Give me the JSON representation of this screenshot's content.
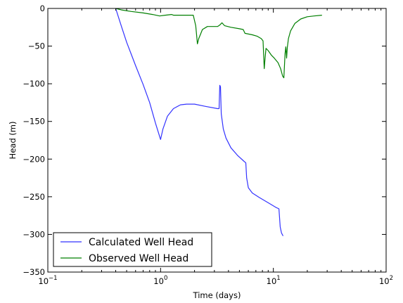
{
  "chart_data": {
    "type": "line",
    "title": "",
    "xlabel": "Time (days)",
    "ylabel": "Head (m)",
    "xscale": "log",
    "xlim": [
      0.1,
      100
    ],
    "ylim": [
      -350,
      0
    ],
    "x_ticks": [
      {
        "value": 0.1,
        "base": "10",
        "exp": "−1"
      },
      {
        "value": 1,
        "base": "10",
        "exp": "0"
      },
      {
        "value": 10,
        "base": "10",
        "exp": "1"
      },
      {
        "value": 100,
        "base": "10",
        "exp": "2"
      }
    ],
    "y_ticks": [
      {
        "value": 0,
        "label": "0"
      },
      {
        "value": -50,
        "label": "−50"
      },
      {
        "value": -100,
        "label": "−100"
      },
      {
        "value": -150,
        "label": "−150"
      },
      {
        "value": -200,
        "label": "−200"
      },
      {
        "value": -250,
        "label": "−250"
      },
      {
        "value": -300,
        "label": "−300"
      },
      {
        "value": -350,
        "label": "−350"
      }
    ],
    "grid": false,
    "legend_position": "lower-left",
    "series": [
      {
        "name": "Calculated Well Head",
        "color": "#3333ff",
        "points": [
          [
            0.4,
            0
          ],
          [
            0.42,
            -10
          ],
          [
            0.45,
            -24
          ],
          [
            0.5,
            -45
          ],
          [
            0.55,
            -61
          ],
          [
            0.6,
            -76
          ],
          [
            0.7,
            -101
          ],
          [
            0.8,
            -125
          ],
          [
            0.9,
            -152
          ],
          [
            1.0,
            -174
          ],
          [
            1.05,
            -160
          ],
          [
            1.15,
            -143
          ],
          [
            1.3,
            -133
          ],
          [
            1.5,
            -128
          ],
          [
            1.7,
            -127
          ],
          [
            2.0,
            -127
          ],
          [
            2.5,
            -130
          ],
          [
            3.2,
            -133
          ],
          [
            3.3,
            -133
          ],
          [
            3.35,
            -102
          ],
          [
            3.4,
            -104
          ],
          [
            3.45,
            -140
          ],
          [
            3.6,
            -160
          ],
          [
            3.8,
            -172
          ],
          [
            4.2,
            -185
          ],
          [
            4.8,
            -195
          ],
          [
            5.5,
            -203
          ],
          [
            5.7,
            -205
          ],
          [
            5.8,
            -225
          ],
          [
            6.0,
            -238
          ],
          [
            6.5,
            -245
          ],
          [
            7.5,
            -251
          ],
          [
            9.0,
            -258
          ],
          [
            10.5,
            -264
          ],
          [
            11.2,
            -266
          ],
          [
            11.5,
            -290
          ],
          [
            11.8,
            -298
          ],
          [
            12.2,
            -302
          ]
        ]
      },
      {
        "name": "Observed Well Head",
        "color": "#007f00",
        "points": [
          [
            0.4,
            0
          ],
          [
            0.45,
            -2
          ],
          [
            0.55,
            -4
          ],
          [
            0.7,
            -6
          ],
          [
            0.85,
            -8
          ],
          [
            0.98,
            -10
          ],
          [
            1.1,
            -9
          ],
          [
            1.25,
            -8
          ],
          [
            1.3,
            -9
          ],
          [
            1.5,
            -9
          ],
          [
            1.8,
            -9
          ],
          [
            1.95,
            -9
          ],
          [
            2.05,
            -23
          ],
          [
            2.12,
            -47
          ],
          [
            2.18,
            -40
          ],
          [
            2.35,
            -28
          ],
          [
            2.6,
            -24
          ],
          [
            2.9,
            -24
          ],
          [
            3.2,
            -24
          ],
          [
            3.35,
            -22
          ],
          [
            3.5,
            -19
          ],
          [
            3.7,
            -23
          ],
          [
            4.2,
            -25
          ],
          [
            5.0,
            -27
          ],
          [
            5.4,
            -28
          ],
          [
            5.6,
            -33
          ],
          [
            6.5,
            -35
          ],
          [
            7.2,
            -37
          ],
          [
            7.8,
            -40
          ],
          [
            8.1,
            -43
          ],
          [
            8.3,
            -80
          ],
          [
            8.45,
            -66
          ],
          [
            8.6,
            -53
          ],
          [
            9.0,
            -56
          ],
          [
            9.6,
            -62
          ],
          [
            10.2,
            -66
          ],
          [
            11.0,
            -72
          ],
          [
            11.6,
            -80
          ],
          [
            12.1,
            -90
          ],
          [
            12.4,
            -92
          ],
          [
            12.7,
            -60
          ],
          [
            12.9,
            -51
          ],
          [
            13.1,
            -66
          ],
          [
            13.3,
            -52
          ],
          [
            13.6,
            -40
          ],
          [
            14.2,
            -30
          ],
          [
            15.5,
            -20
          ],
          [
            17.5,
            -14
          ],
          [
            20.0,
            -11
          ],
          [
            23.0,
            -10
          ],
          [
            27.0,
            -9
          ]
        ]
      }
    ]
  }
}
